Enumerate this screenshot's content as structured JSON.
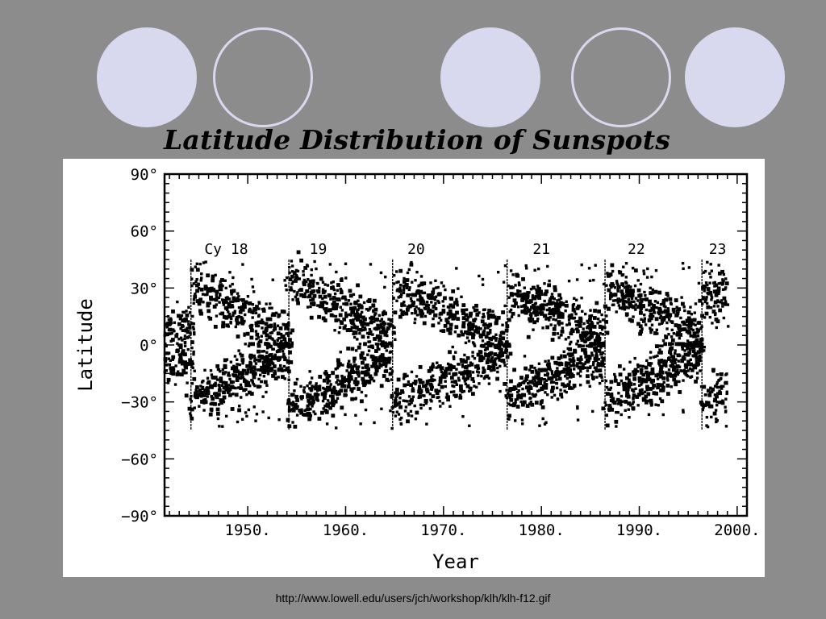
{
  "slide": {
    "title": "Latitude Distribution of Sunspots",
    "source_url": "http://www.lowell.edu/users/jch/workshop/klh/klh-f12.gif",
    "background_color": "#8c8c8c",
    "circle_color": "#d8d8ee",
    "decorations": [
      "filled",
      "ring",
      "filled",
      "ring",
      "filled"
    ]
  },
  "chart_data": {
    "type": "scatter",
    "title": "",
    "xlabel": "Year",
    "ylabel": "Latitude",
    "xlim": [
      1941.5,
      2001
    ],
    "ylim": [
      -90,
      90
    ],
    "x_ticks": [
      1950,
      1960,
      1970,
      1980,
      1990,
      2000
    ],
    "x_tick_labels": [
      "1950.",
      "1960.",
      "1970.",
      "1980.",
      "1990.",
      "2000."
    ],
    "y_ticks": [
      90,
      60,
      30,
      0,
      -30,
      -60,
      -90
    ],
    "y_tick_labels": [
      "90°",
      "60°",
      "30°",
      "0°",
      "−30°",
      "−60°",
      "−90°"
    ],
    "grid": false,
    "cycle_boundaries": [
      1944.2,
      1954.2,
      1964.8,
      1976.5,
      1986.5,
      1996.4
    ],
    "cycles": [
      {
        "label": "Cy 18",
        "label_x": 1947.8,
        "start": 1944.2,
        "end": 1954.2,
        "start_lat": 30,
        "end_lat": 5,
        "north_center": 14,
        "south_center": -14
      },
      {
        "label": "19",
        "label_x": 1957.2,
        "start": 1954.2,
        "end": 1964.8,
        "start_lat": 35,
        "end_lat": 5,
        "north_center": 18,
        "south_center": -18
      },
      {
        "label": "20",
        "label_x": 1967.2,
        "start": 1964.8,
        "end": 1976.5,
        "start_lat": 30,
        "end_lat": 4,
        "north_center": 15,
        "south_center": -15
      },
      {
        "label": "21",
        "label_x": 1980.0,
        "start": 1976.5,
        "end": 1986.5,
        "start_lat": 28,
        "end_lat": 5,
        "north_center": 15,
        "south_center": -15
      },
      {
        "label": "22",
        "label_x": 1989.7,
        "start": 1986.5,
        "end": 1996.4,
        "start_lat": 30,
        "end_lat": 5,
        "north_center": 16,
        "south_center": -16
      },
      {
        "label": "23",
        "label_x": 1998.0,
        "start": 1996.4,
        "end": 1999.0,
        "start_lat": 28,
        "end_lat": 24,
        "north_center": 22,
        "south_center": -22
      }
    ]
  }
}
